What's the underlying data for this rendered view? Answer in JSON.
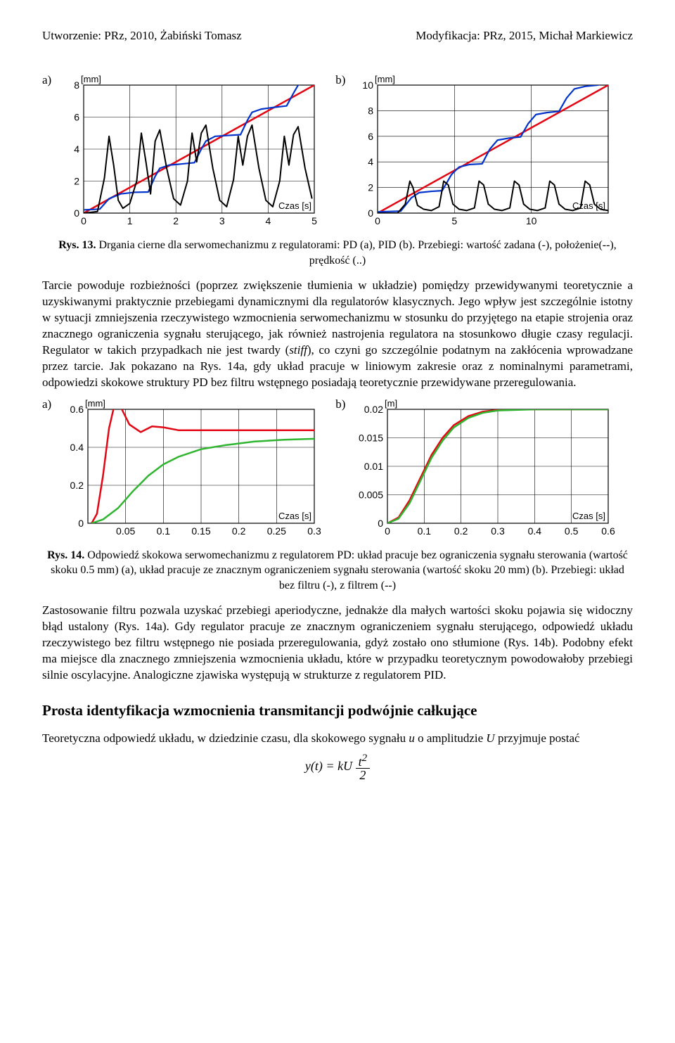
{
  "header": {
    "left": "Utworzenie: PRz, 2010, Żabiński Tomasz",
    "right": "Modyfikacja: PRz, 2015, Michał Markiewicz"
  },
  "fig13": {
    "label_a": "a)",
    "label_b": "b)",
    "caption_strong": "Rys. 13.",
    "caption_rest": " Drgania cierne dla serwomechanizmu z regulatorami: PD (a), PID (b). Przebiegi: wartość zadana (-), położenie(--), prędkość (..)",
    "a": {
      "type": "line",
      "xunit": "Czas [s]",
      "yunit": "[mm]",
      "xlim": [
        0,
        5
      ],
      "ylim": [
        0,
        8
      ],
      "xticks": [
        0,
        1,
        2,
        3,
        4,
        5
      ],
      "yticks": [
        0,
        2,
        4,
        6,
        8
      ],
      "grid_color": "#000000",
      "series": [
        {
          "name": "setpoint",
          "color": "#e30613",
          "width": 2.5,
          "dash": "",
          "pts": [
            [
              0,
              0
            ],
            [
              5,
              8
            ]
          ]
        },
        {
          "name": "position",
          "color": "#0033cc",
          "width": 2.2,
          "dash": "",
          "pts": [
            [
              0,
              0.2
            ],
            [
              0.35,
              0.25
            ],
            [
              0.55,
              0.9
            ],
            [
              0.8,
              1.2
            ],
            [
              0.95,
              1.25
            ],
            [
              1.1,
              1.3
            ],
            [
              1.4,
              1.32
            ],
            [
              1.55,
              2.3
            ],
            [
              1.65,
              2.8
            ],
            [
              1.85,
              3.0
            ],
            [
              2.05,
              3.05
            ],
            [
              2.4,
              3.15
            ],
            [
              2.55,
              4.0
            ],
            [
              2.65,
              4.5
            ],
            [
              2.85,
              4.8
            ],
            [
              3.1,
              4.85
            ],
            [
              3.4,
              4.9
            ],
            [
              3.55,
              5.8
            ],
            [
              3.65,
              6.3
            ],
            [
              3.85,
              6.5
            ],
            [
              4.1,
              6.6
            ],
            [
              4.4,
              6.7
            ],
            [
              4.55,
              7.5
            ],
            [
              4.65,
              8.0
            ],
            [
              4.85,
              8.2
            ],
            [
              5.0,
              8.3
            ]
          ]
        },
        {
          "name": "velocity",
          "color": "#000000",
          "width": 2.0,
          "dash": "",
          "pts": [
            [
              0,
              0
            ],
            [
              0.3,
              0.1
            ],
            [
              0.45,
              2.2
            ],
            [
              0.55,
              4.8
            ],
            [
              0.65,
              3.0
            ],
            [
              0.75,
              0.8
            ],
            [
              0.85,
              0.3
            ],
            [
              1.0,
              0.6
            ],
            [
              1.15,
              2.0
            ],
            [
              1.25,
              5.0
            ],
            [
              1.35,
              3.2
            ],
            [
              1.45,
              1.2
            ],
            [
              1.55,
              4.5
            ],
            [
              1.65,
              5.2
            ],
            [
              1.8,
              2.8
            ],
            [
              1.95,
              0.9
            ],
            [
              2.1,
              0.5
            ],
            [
              2.25,
              2.0
            ],
            [
              2.35,
              5.0
            ],
            [
              2.45,
              3.2
            ],
            [
              2.55,
              5.0
            ],
            [
              2.65,
              5.5
            ],
            [
              2.8,
              2.8
            ],
            [
              2.95,
              0.8
            ],
            [
              3.1,
              0.4
            ],
            [
              3.25,
              2.1
            ],
            [
              3.35,
              4.8
            ],
            [
              3.45,
              3.0
            ],
            [
              3.55,
              4.8
            ],
            [
              3.65,
              5.5
            ],
            [
              3.8,
              2.8
            ],
            [
              3.95,
              0.8
            ],
            [
              4.1,
              0.4
            ],
            [
              4.25,
              2.0
            ],
            [
              4.35,
              4.8
            ],
            [
              4.45,
              3.0
            ],
            [
              4.55,
              4.9
            ],
            [
              4.65,
              5.4
            ],
            [
              4.8,
              2.8
            ],
            [
              4.95,
              0.9
            ]
          ]
        }
      ]
    },
    "b": {
      "type": "line",
      "xunit": "Czas [s]",
      "yunit": "[mm]",
      "xlim": [
        0,
        15
      ],
      "ylim": [
        0,
        10
      ],
      "xticks": [
        0,
        5,
        10
      ],
      "yticks": [
        0,
        2,
        4,
        6,
        8,
        10
      ],
      "grid_color": "#000000",
      "series": [
        {
          "name": "setpoint",
          "color": "#e30613",
          "width": 2.5,
          "dash": "",
          "pts": [
            [
              0,
              0
            ],
            [
              15,
              10
            ]
          ]
        },
        {
          "name": "position",
          "color": "#0033cc",
          "width": 2.2,
          "dash": "",
          "pts": [
            [
              0,
              0.1
            ],
            [
              1.5,
              0.15
            ],
            [
              2.2,
              1.2
            ],
            [
              2.7,
              1.6
            ],
            [
              3.5,
              1.7
            ],
            [
              4.2,
              1.75
            ],
            [
              4.8,
              3.0
            ],
            [
              5.3,
              3.6
            ],
            [
              6.0,
              3.8
            ],
            [
              6.8,
              3.85
            ],
            [
              7.3,
              5.0
            ],
            [
              7.8,
              5.7
            ],
            [
              8.5,
              5.85
            ],
            [
              9.3,
              5.95
            ],
            [
              9.8,
              7.0
            ],
            [
              10.3,
              7.7
            ],
            [
              11.0,
              7.85
            ],
            [
              11.8,
              7.95
            ],
            [
              12.3,
              9.0
            ],
            [
              12.8,
              9.7
            ],
            [
              13.5,
              9.9
            ],
            [
              14.3,
              10.0
            ],
            [
              15,
              10.2
            ]
          ]
        },
        {
          "name": "velocity",
          "color": "#000000",
          "width": 2.0,
          "dash": "",
          "pts": [
            [
              0,
              0
            ],
            [
              1.3,
              0
            ],
            [
              1.8,
              0.7
            ],
            [
              2.1,
              2.5
            ],
            [
              2.3,
              2.0
            ],
            [
              2.6,
              0.6
            ],
            [
              3.0,
              0.3
            ],
            [
              3.5,
              0.2
            ],
            [
              4.0,
              0.5
            ],
            [
              4.3,
              2.5
            ],
            [
              4.6,
              2.2
            ],
            [
              4.9,
              0.7
            ],
            [
              5.3,
              0.3
            ],
            [
              5.8,
              0.2
            ],
            [
              6.3,
              0.4
            ],
            [
              6.6,
              2.5
            ],
            [
              6.9,
              2.2
            ],
            [
              7.2,
              0.7
            ],
            [
              7.6,
              0.3
            ],
            [
              8.1,
              0.2
            ],
            [
              8.6,
              0.4
            ],
            [
              8.9,
              2.5
            ],
            [
              9.2,
              2.2
            ],
            [
              9.5,
              0.7
            ],
            [
              9.9,
              0.3
            ],
            [
              10.4,
              0.2
            ],
            [
              10.9,
              0.4
            ],
            [
              11.2,
              2.5
            ],
            [
              11.5,
              2.2
            ],
            [
              11.8,
              0.7
            ],
            [
              12.2,
              0.3
            ],
            [
              12.7,
              0.2
            ],
            [
              13.2,
              0.4
            ],
            [
              13.5,
              2.5
            ],
            [
              13.8,
              2.2
            ],
            [
              14.1,
              0.7
            ],
            [
              14.5,
              0.3
            ],
            [
              15,
              0.2
            ]
          ]
        }
      ]
    }
  },
  "para1": "Tarcie powoduje rozbieżności (poprzez zwiększenie tłumienia w układzie) pomiędzy przewidywanymi teoretycznie a uzyskiwanymi praktycznie przebiegami dynamicznymi dla regulatorów klasycznych. Jego wpływ jest szczególnie istotny w sytuacji zmniejszenia rzeczywistego wzmocnienia serwomechanizmu w stosunku do przyjętego na etapie strojenia oraz znacznego ograniczenia sygnału sterującego, jak również nastrojenia regulatora na stosunkowo długie czasy regulacji. Regulator w takich przypadkach nie jest twardy (<i>stiff</i>), co czyni go szczególnie podatnym na zakłócenia wprowadzane przez tarcie. Jak pokazano na Rys. 14a, gdy układ pracuje w liniowym zakresie oraz z nominalnymi parametrami, odpowiedzi skokowe struktury PD bez filtru wstępnego posiadają teoretycznie przewidywane przeregulowania.",
  "fig14": {
    "label_a": "a)",
    "label_b": "b)",
    "caption_strong": "Rys. 14.",
    "caption_rest": " Odpowiedź skokowa serwomechanizmu z regulatorem PD: układ pracuje bez ograniczenia sygnału sterowania (wartość skoku 0.5 mm) (a), układ pracuje ze znacznym ograniczeniem sygnału sterowania (wartość skoku 20 mm) (b). Przebiegi: układ bez filtru (-), z filtrem (--)",
    "a": {
      "type": "line",
      "xunit": "Czas [s]",
      "yunit": "[mm]",
      "xlim": [
        0,
        0.3
      ],
      "ylim": [
        0,
        0.6
      ],
      "xticks": [
        0.05,
        0.1,
        0.15,
        0.2,
        0.25,
        0.3
      ],
      "yticks": [
        0,
        0.2,
        0.4,
        0.6
      ],
      "series": [
        {
          "name": "no-filter",
          "color": "#e30613",
          "width": 2.5,
          "pts": [
            [
              0.005,
              0
            ],
            [
              0.012,
              0.05
            ],
            [
              0.02,
              0.25
            ],
            [
              0.028,
              0.5
            ],
            [
              0.035,
              0.62
            ],
            [
              0.045,
              0.6
            ],
            [
              0.055,
              0.52
            ],
            [
              0.07,
              0.48
            ],
            [
              0.085,
              0.51
            ],
            [
              0.1,
              0.505
            ],
            [
              0.12,
              0.49
            ],
            [
              0.15,
              0.49
            ],
            [
              0.2,
              0.49
            ],
            [
              0.3,
              0.49
            ]
          ]
        },
        {
          "name": "with-filter",
          "color": "#2fb52f",
          "width": 2.5,
          "pts": [
            [
              0.005,
              0
            ],
            [
              0.02,
              0.02
            ],
            [
              0.04,
              0.08
            ],
            [
              0.06,
              0.17
            ],
            [
              0.08,
              0.25
            ],
            [
              0.1,
              0.31
            ],
            [
              0.12,
              0.35
            ],
            [
              0.15,
              0.39
            ],
            [
              0.18,
              0.41
            ],
            [
              0.22,
              0.43
            ],
            [
              0.26,
              0.44
            ],
            [
              0.3,
              0.445
            ]
          ]
        }
      ]
    },
    "b": {
      "type": "line",
      "xunit": "Czas [s]",
      "yunit": "[m]",
      "xlim": [
        0,
        0.6
      ],
      "ylim": [
        0,
        0.02
      ],
      "xticks": [
        0,
        0.1,
        0.2,
        0.3,
        0.4,
        0.5,
        0.6
      ],
      "yticks": [
        0,
        0.005,
        0.01,
        0.015,
        0.02
      ],
      "series": [
        {
          "name": "no-filter",
          "color": "#e30613",
          "width": 2.5,
          "pts": [
            [
              0,
              0
            ],
            [
              0.03,
              0.001
            ],
            [
              0.06,
              0.004
            ],
            [
              0.09,
              0.008
            ],
            [
              0.12,
              0.012
            ],
            [
              0.15,
              0.015
            ],
            [
              0.18,
              0.0172
            ],
            [
              0.22,
              0.0188
            ],
            [
              0.26,
              0.0196
            ],
            [
              0.3,
              0.0199
            ],
            [
              0.4,
              0.02
            ],
            [
              0.5,
              0.02
            ],
            [
              0.6,
              0.02
            ]
          ]
        },
        {
          "name": "with-filter",
          "color": "#2fb52f",
          "width": 2.5,
          "pts": [
            [
              0,
              0
            ],
            [
              0.03,
              0.0008
            ],
            [
              0.06,
              0.0035
            ],
            [
              0.09,
              0.0075
            ],
            [
              0.12,
              0.0115
            ],
            [
              0.15,
              0.0145
            ],
            [
              0.18,
              0.0168
            ],
            [
              0.22,
              0.0185
            ],
            [
              0.26,
              0.0194
            ],
            [
              0.3,
              0.0198
            ],
            [
              0.4,
              0.02
            ],
            [
              0.5,
              0.02
            ],
            [
              0.6,
              0.02
            ]
          ]
        }
      ]
    }
  },
  "para2": "Zastosowanie filtru pozwala uzyskać przebiegi aperiodyczne, jednakże dla małych wartości skoku pojawia się widoczny błąd ustalony (Rys. 14a). Gdy regulator pracuje ze znacznym ograniczeniem sygnału sterującego, odpowiedź układu rzeczywistego bez filtru wstępnego nie posiada przeregulowania, gdyż zostało ono stłumione (Rys. 14b). Podobny efekt ma miejsce dla znacznego zmniejszenia wzmocnienia układu, które w przypadku teoretycznym powodowałoby przebiegi silnie oscylacyjne. Analogiczne zjawiska występują w strukturze z regulatorem PID.",
  "section_title": "Prosta identyfikacja wzmocnienia transmitancji podwójnie całkujące",
  "para3": "Teoretyczna odpowiedź układu, w dziedzinie czasu, dla skokowego sygnału <i>u</i> o amplitudzie <i>U</i> przyjmuje postać",
  "equation": "y(t) = kU · t² / 2"
}
